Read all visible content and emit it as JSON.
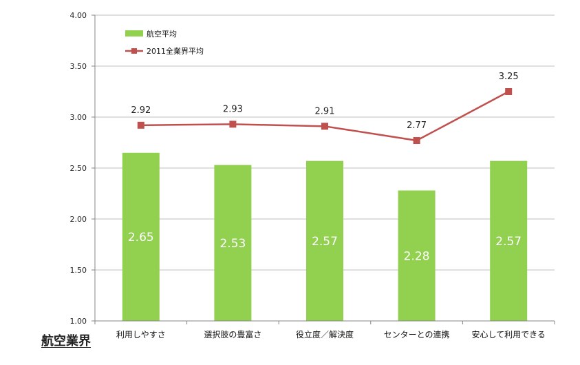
{
  "corner_label": "航空業界",
  "chart_data": {
    "type": "bar",
    "categories": [
      "利用しやすさ",
      "選択肢の豊富さ",
      "役立度／解決度",
      "センターとの連携",
      "安心して利用できる"
    ],
    "series": [
      {
        "name": "航空平均",
        "type": "bar",
        "values": [
          2.65,
          2.53,
          2.57,
          2.28,
          2.57
        ],
        "color": "#92d050"
      },
      {
        "name": "2011全業界平均",
        "type": "line",
        "values": [
          2.92,
          2.93,
          2.91,
          2.77,
          3.25
        ],
        "color": "#c0504d"
      }
    ],
    "bar_labels": [
      "2.65",
      "2.53",
      "2.57",
      "2.28",
      "2.57"
    ],
    "line_labels": [
      "2.92",
      "2.93",
      "2.91",
      "2.77",
      "3.25"
    ],
    "yticks": [
      "1.00",
      "1.50",
      "2.00",
      "2.50",
      "3.00",
      "3.50",
      "4.00"
    ],
    "ylim": [
      1.0,
      4.0
    ],
    "grid": true,
    "legend": "top-left"
  }
}
